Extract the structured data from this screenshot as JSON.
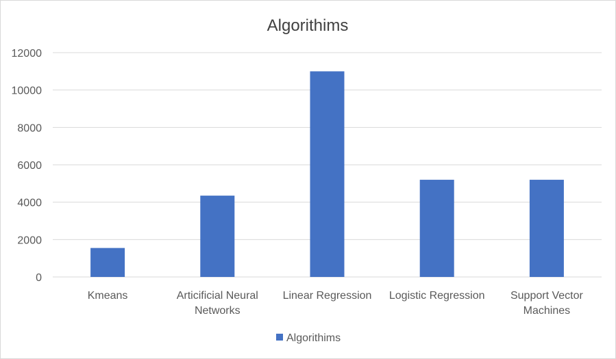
{
  "chart_data": {
    "type": "bar",
    "title": "Algorithims",
    "categories": [
      "Kmeans",
      "Articificial Neural Networks",
      "Linear Regression",
      "Logistic Regression",
      "Support Vector Machines"
    ],
    "category_lines": [
      [
        "Kmeans"
      ],
      [
        "Articificial Neural",
        "Networks"
      ],
      [
        "Linear Regression"
      ],
      [
        "Logistic Regression"
      ],
      [
        "Support Vector",
        "Machines"
      ]
    ],
    "series": [
      {
        "name": "Algorithims",
        "values": [
          1550,
          4350,
          11000,
          5200,
          5200
        ],
        "color": "#4472c4"
      }
    ],
    "yticks": [
      "0",
      "2000",
      "4000",
      "6000",
      "8000",
      "10000",
      "12000"
    ],
    "ylim": [
      0,
      12000
    ],
    "grid": true,
    "legend_position": "bottom"
  }
}
